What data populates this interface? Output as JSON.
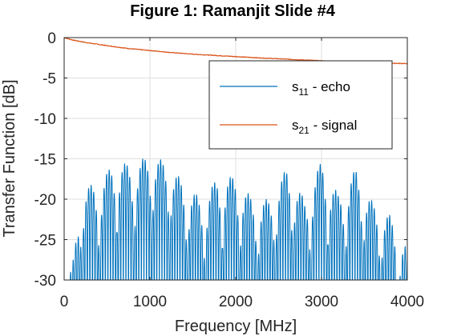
{
  "chart_data": {
    "type": "line",
    "title": "Figure 1: Ramanjit Slide #4",
    "xlabel": "Frequency [MHz]",
    "ylabel": "Transfer Function [dB]",
    "xlim": [
      0,
      4000
    ],
    "ylim": [
      -30,
      0
    ],
    "xticks": [
      0,
      1000,
      2000,
      3000,
      4000
    ],
    "yticks": [
      0,
      -5,
      -10,
      -15,
      -20,
      -25,
      -30
    ],
    "grid": true,
    "legend_position": "top-right",
    "series": [
      {
        "name_base": "s",
        "name_sub": "11",
        "name_suffix": " - echo",
        "color": "#0072bd",
        "style": "rapidly oscillating ripple",
        "envelope": {
          "x": [
            0,
            100,
            200,
            400,
            600,
            800,
            1000,
            1200,
            1400,
            1600,
            1800,
            2000,
            2200,
            2400,
            2600,
            2800,
            3000,
            3200,
            3400,
            3600,
            3800,
            4000
          ],
          "y": [
            -30,
            -28,
            -18.5,
            -18,
            -15.2,
            -15.8,
            -14.4,
            -15.5,
            -18,
            -20,
            -17.2,
            -17.2,
            -20,
            -20,
            -16,
            -20,
            -15.2,
            -19.5,
            -16.2,
            -20.5,
            -22,
            -26
          ]
        }
      },
      {
        "name_base": "s",
        "name_sub": "21",
        "name_suffix": " - signal",
        "color": "#d95319",
        "x": [
          0,
          100,
          250,
          500,
          750,
          1000,
          1250,
          1500,
          1750,
          2000,
          2250,
          2500,
          2750,
          3000,
          3250,
          3500,
          3750,
          4000
        ],
        "y": [
          0,
          -0.3,
          -0.6,
          -1.0,
          -1.35,
          -1.6,
          -1.85,
          -2.05,
          -2.2,
          -2.35,
          -2.5,
          -2.62,
          -2.75,
          -2.87,
          -2.97,
          -3.07,
          -3.15,
          -3.22
        ]
      }
    ]
  }
}
